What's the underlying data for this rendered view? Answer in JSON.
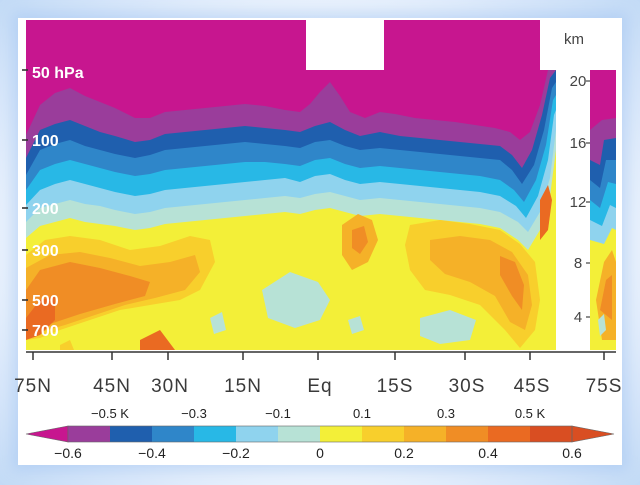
{
  "chart_data": {
    "type": "heatmap",
    "title": "",
    "x_tick_labels": [
      "75N",
      "45N",
      "30N",
      "15N",
      "Eq",
      "15S",
      "30S",
      "45S",
      "75S"
    ],
    "pressure_labels": [
      "50 hPa",
      "100",
      "200",
      "300",
      "500",
      "700"
    ],
    "height_axis": {
      "unit": "km",
      "ticks": [
        "20",
        "16",
        "12",
        "8",
        "4"
      ]
    },
    "colorbar": {
      "top_labels": [
        "−0.5 K",
        "−0.3",
        "−0.1",
        "0.1",
        "0.3",
        "0.5 K"
      ],
      "bottom_labels": [
        "−0.6",
        "−0.4",
        "−0.2",
        "0",
        "0.2",
        "0.4",
        "0.6"
      ],
      "levels": [
        -0.6,
        -0.5,
        -0.4,
        -0.3,
        -0.2,
        -0.1,
        0,
        0.1,
        0.2,
        0.3,
        0.4,
        0.5,
        0.6
      ],
      "colors": [
        "#9a3d9b",
        "#1f5fae",
        "#2f86c9",
        "#28b8e6",
        "#8fd3ee",
        "#b7e2d6",
        "#f3ef38",
        "#f8cf2c",
        "#f5b128",
        "#f08d25",
        "#ea6a22",
        "#d94e22"
      ],
      "below_color": "#c7168f",
      "above_color": "#d94e22"
    },
    "legend": "bottom"
  }
}
